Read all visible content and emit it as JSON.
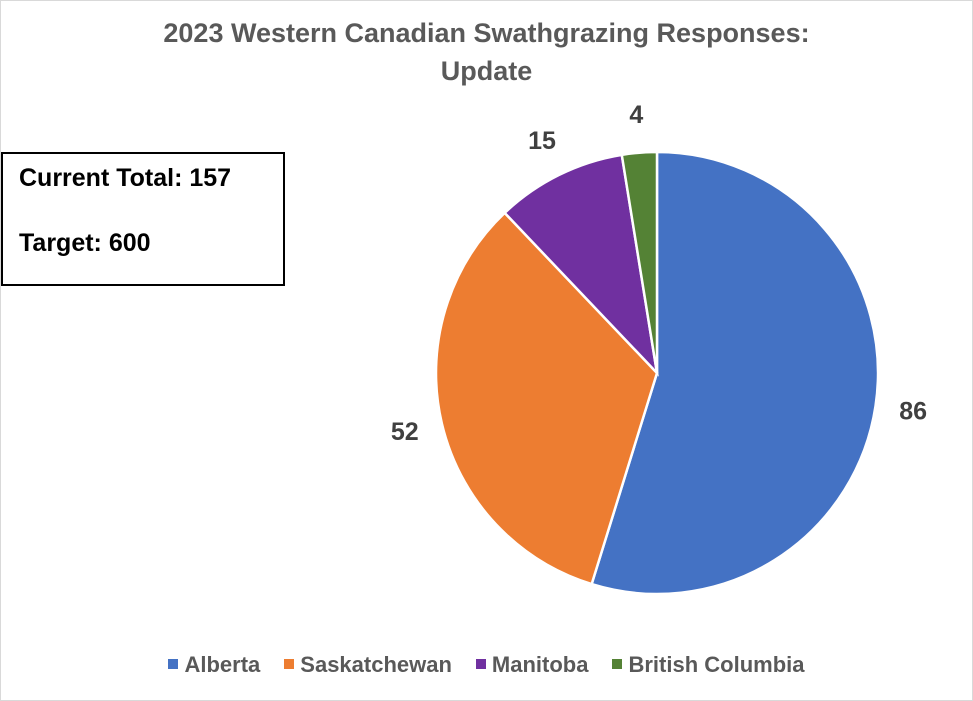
{
  "chart_data": {
    "type": "pie",
    "title_line1": "2023 Western Canadian Swathgrazing Responses:",
    "title_line2": "Update",
    "categories": [
      "Alberta",
      "Saskatchewan",
      "Manitoba",
      "British Columbia"
    ],
    "values": [
      86,
      52,
      15,
      4
    ],
    "colors": [
      "#4472c4",
      "#ed7d31",
      "#7030a0",
      "#548235"
    ],
    "data_labels_shown": true,
    "legend_position": "bottom",
    "start_angle_deg": 0,
    "direction": "clockwise"
  },
  "info_box": {
    "current_total": "Current Total: 157",
    "target": "Target: 600"
  }
}
